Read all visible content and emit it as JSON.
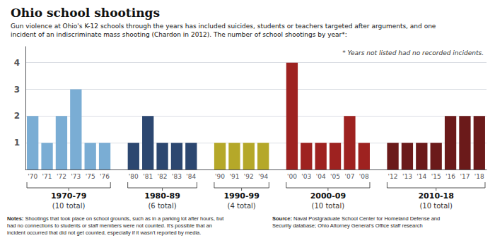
{
  "chart_data": {
    "type": "bar",
    "title": "Ohio school shootings",
    "subtitle": "Gun violence at Ohio's K-12 schools through the years has included suicides, students or teachers targeted after arguments, and one\nincident of an indiscriminate mass shooting (Chardon in 2012). The number of school shootings by year*:",
    "annotation": "* Years not listed had no recorded incidents.",
    "series": [
      {
        "name": "1970-79",
        "sublabel": "(10 total)",
        "color": "#7aadd4",
        "categories": [
          "'70",
          "'71",
          "'72",
          "'73",
          "'75",
          "'76"
        ],
        "values": [
          2,
          1,
          2,
          3,
          1,
          1
        ]
      },
      {
        "name": "1980-89",
        "sublabel": "(6 total)",
        "color": "#2c4770",
        "categories": [
          "'80",
          "'81",
          "'82",
          "'83",
          "'84"
        ],
        "values": [
          1,
          2,
          1,
          1,
          1
        ]
      },
      {
        "name": "1990-99",
        "sublabel": "(4 total)",
        "color": "#b5a829",
        "categories": [
          "'90",
          "'91",
          "'92",
          "'94"
        ],
        "values": [
          1,
          1,
          1,
          1
        ]
      },
      {
        "name": "2000-09",
        "sublabel": "(10 total)",
        "color": "#9e2220",
        "categories": [
          "'00",
          "'03",
          "'04",
          "'05",
          "'07",
          "'08"
        ],
        "values": [
          4,
          1,
          1,
          1,
          2,
          1
        ]
      },
      {
        "name": "2010-18",
        "sublabel": "(10 total)",
        "color": "#6b1a1a",
        "categories": [
          "'12",
          "'13",
          "'14",
          "'15",
          "'16",
          "'17",
          "'18"
        ],
        "values": [
          1,
          1,
          1,
          1,
          2,
          2,
          2
        ]
      }
    ],
    "footnotes": [
      {
        "label": "Notes:",
        "text": "Shootings that took place on school grounds, such as in a parking lot after hours, but\nhad no connections to students or staff members were not counted. It’s possible that an\nincident occurred that did not get counted, especially if it wasn’t reported by media."
      },
      {
        "label": "Source:",
        "text": "Naval Postgraduate School Center for Homeland Defense and\nSecurity database; Ohio Attorney General’s Office staff research"
      }
    ],
    "ylim": [
      0,
      4.6
    ],
    "yticks": [
      1,
      2,
      3,
      4
    ],
    "grid": true
  }
}
